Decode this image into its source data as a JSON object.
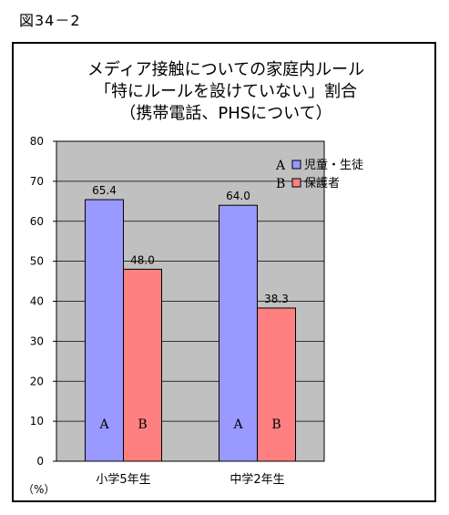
{
  "figure_label": "図34－2",
  "chart_data": {
    "type": "bar",
    "title_lines": [
      "メディア接触についての家庭内ルール",
      "「特にルールを設けていない」割合",
      "（携帯電話、PHSについて）"
    ],
    "categories": [
      "小学5年生",
      "中学2年生"
    ],
    "series": [
      {
        "name": "児童・生徒",
        "letter": "A",
        "values": [
          65.4,
          64.0
        ],
        "value_labels": [
          "65.4",
          "64.0"
        ],
        "color": "#9999ff"
      },
      {
        "name": "保護者",
        "letter": "B",
        "values": [
          48.0,
          38.3
        ],
        "value_labels": [
          "48.0",
          "38.3"
        ],
        "color": "#ff8080"
      }
    ],
    "ylim": [
      0,
      80
    ],
    "yticks": [
      0,
      10,
      20,
      30,
      40,
      50,
      60,
      70,
      80
    ],
    "ylabel": "（%）",
    "plot_background": "#c0c0c0",
    "grid": true,
    "legend_position": "top-right"
  }
}
